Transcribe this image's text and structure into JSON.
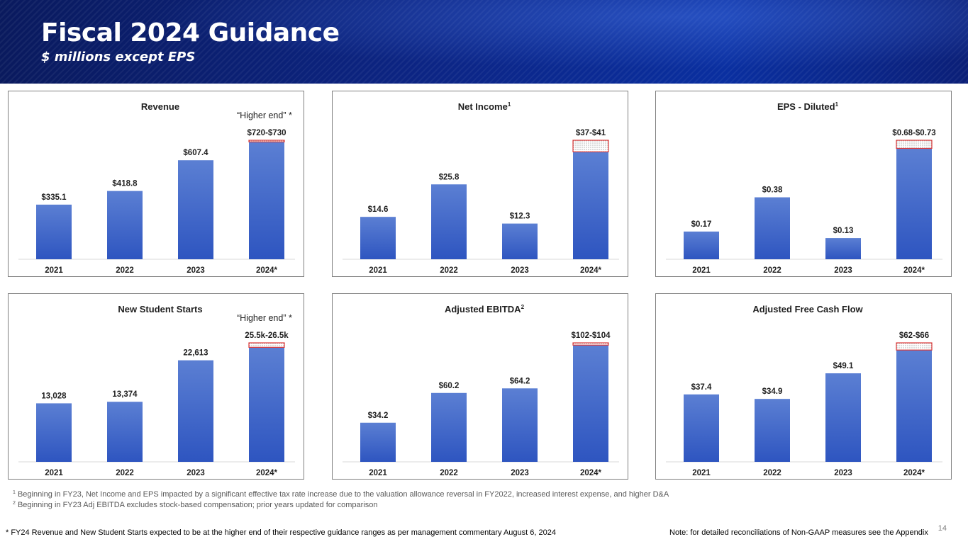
{
  "header": {
    "title": "Fiscal 2024 Guidance",
    "subtitle": "$ millions except EPS"
  },
  "colors": {
    "bar_top": "#5b7fd3",
    "bar_bottom": "#2e55c0",
    "guidance_range_border": "#e03a3a"
  },
  "chart_data": [
    {
      "type": "bar",
      "title": "Revenue",
      "title_sup": "",
      "annotation": "“Higher end” *",
      "categories": [
        "2021",
        "2022",
        "2023",
        "2024*"
      ],
      "values": [
        335.1,
        418.8,
        607.4,
        720
      ],
      "range_high": [
        null,
        null,
        null,
        730
      ],
      "labels": [
        "$335.1",
        "$418.8",
        "$607.4",
        "$720-$730"
      ],
      "ylim": [
        0,
        730
      ]
    },
    {
      "type": "bar",
      "title": "Net Income",
      "title_sup": "1",
      "annotation": "",
      "categories": [
        "2021",
        "2022",
        "2023",
        "2024*"
      ],
      "values": [
        14.6,
        25.8,
        12.3,
        37
      ],
      "range_high": [
        null,
        null,
        null,
        41
      ],
      "labels": [
        "$14.6",
        "$25.8",
        "$12.3",
        "$37-$41"
      ],
      "ylim": [
        0,
        41
      ]
    },
    {
      "type": "bar",
      "title": "EPS - Diluted",
      "title_sup": "1",
      "annotation": "",
      "categories": [
        "2021",
        "2022",
        "2023",
        "2024*"
      ],
      "values": [
        0.17,
        0.38,
        0.13,
        0.68
      ],
      "range_high": [
        null,
        null,
        null,
        0.73
      ],
      "labels": [
        "$0.17",
        "$0.38",
        "$0.13",
        "$0.68-$0.73"
      ],
      "ylim": [
        0,
        0.73
      ]
    },
    {
      "type": "bar",
      "title": "New Student Starts",
      "title_sup": "",
      "annotation": "“Higher end” *",
      "categories": [
        "2021",
        "2022",
        "2023",
        "2024*"
      ],
      "values": [
        13028,
        13374,
        22613,
        25500
      ],
      "range_high": [
        null,
        null,
        null,
        26500
      ],
      "labels": [
        "13,028",
        "13,374",
        "22,613",
        "25.5k-26.5k"
      ],
      "ylim": [
        0,
        26500
      ]
    },
    {
      "type": "bar",
      "title": "Adjusted EBITDA",
      "title_sup": "2",
      "annotation": "",
      "categories": [
        "2021",
        "2022",
        "2023",
        "2024*"
      ],
      "values": [
        34.2,
        60.2,
        64.2,
        102
      ],
      "range_high": [
        null,
        null,
        null,
        104
      ],
      "labels": [
        "$34.2",
        "$60.2",
        "$64.2",
        "$102-$104"
      ],
      "ylim": [
        0,
        104
      ]
    },
    {
      "type": "bar",
      "title": "Adjusted Free Cash Flow",
      "title_sup": "",
      "annotation": "",
      "categories": [
        "2021",
        "2022",
        "2023",
        "2024*"
      ],
      "values": [
        37.4,
        34.9,
        49.1,
        62
      ],
      "range_high": [
        null,
        null,
        null,
        66
      ],
      "labels": [
        "$37.4",
        "$34.9",
        "$49.1",
        "$62-$66"
      ],
      "ylim": [
        0,
        66
      ]
    }
  ],
  "footnotes": {
    "fn1_mark": "1",
    "fn1_text": " Beginning in FY23, Net Income and EPS impacted by a significant effective tax rate increase due to the valuation allowance reversal in FY2022, increased interest expense, and higher D&A",
    "fn2_mark": "2",
    "fn2_text": " Beginning in FY23 Adj EBITDA excludes stock-based compensation; prior years updated for comparison"
  },
  "bottom": {
    "left_note": "* FY24 Revenue and New Student Starts expected to be at the higher end of their respective guidance ranges as per management commentary August 6, 2024",
    "right_note": "Note: for detailed reconciliations of Non-GAAP measures see the Appendix",
    "page_number": "14"
  }
}
